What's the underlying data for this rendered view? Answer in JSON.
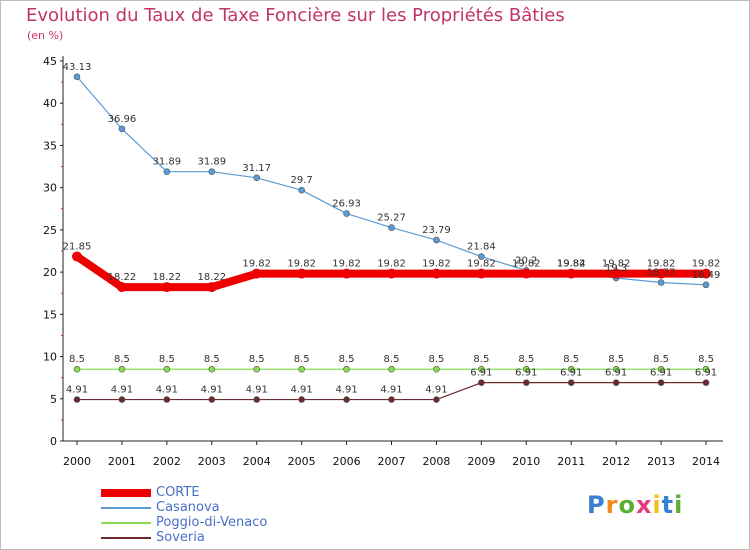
{
  "title": "Evolution du Taux de Taxe Foncière sur les Propriétés Bâties",
  "unit": "(en %)",
  "logo": "Proxiti",
  "chart_data": {
    "type": "line",
    "x": [
      2000,
      2001,
      2002,
      2003,
      2004,
      2005,
      2006,
      2007,
      2008,
      2009,
      2010,
      2011,
      2012,
      2013,
      2014
    ],
    "ylim": [
      0,
      45
    ],
    "yticks": [
      0,
      5,
      10,
      15,
      20,
      25,
      30,
      35,
      40,
      45
    ],
    "grid": false,
    "legend_position": "bottom-left",
    "series": [
      {
        "name": "CORTE",
        "color": "#ee0000",
        "width": 8,
        "values": [
          21.85,
          18.22,
          18.22,
          18.22,
          19.82,
          19.82,
          19.82,
          19.82,
          19.82,
          19.82,
          19.82,
          19.82,
          19.82,
          19.82,
          19.82
        ],
        "labels": [
          "21.85",
          "18.22",
          "18.22",
          "18.22",
          "19.82",
          "19.82",
          "19.82",
          "19.82",
          "19.82",
          "19.82",
          "19.82",
          "19.82",
          "19.82",
          "19.82",
          "19.82"
        ]
      },
      {
        "name": "Casanova",
        "color": "#5b9bd5",
        "width": 1.2,
        "values": [
          43.13,
          36.96,
          31.89,
          31.89,
          31.17,
          29.7,
          26.93,
          25.27,
          23.79,
          21.84,
          20.2,
          19.84,
          19.3,
          18.77,
          18.49
        ],
        "labels": [
          "43.13",
          "36.96",
          "31.89",
          "31.89",
          "31.17",
          "29.7",
          "26.93",
          "25.27",
          "23.79",
          "21.84",
          "20.2",
          "19.84",
          "19.3",
          "18.77",
          "18.49"
        ]
      },
      {
        "name": "Poggio-di-Venaco",
        "color": "#88dd55",
        "width": 1.2,
        "values": [
          8.5,
          8.5,
          8.5,
          8.5,
          8.5,
          8.5,
          8.5,
          8.5,
          8.5,
          8.5,
          8.5,
          8.5,
          8.5,
          8.5,
          8.5
        ],
        "labels": [
          "8.5",
          "8.5",
          "8.5",
          "8.5",
          "8.5",
          "8.5",
          "8.5",
          "8.5",
          "8.5",
          "8.5",
          "8.5",
          "8.5",
          "8.5",
          "8.5",
          "8.5"
        ]
      },
      {
        "name": "Soveria",
        "color": "#6b2a2f",
        "width": 1.2,
        "values": [
          4.91,
          4.91,
          4.91,
          4.91,
          4.91,
          4.91,
          4.91,
          4.91,
          4.91,
          6.91,
          6.91,
          6.91,
          6.91,
          6.91,
          6.91
        ],
        "labels": [
          "4.91",
          "4.91",
          "4.91",
          "4.91",
          "4.91",
          "4.91",
          "4.91",
          "4.91",
          "4.91",
          "6.91",
          "6.91",
          "6.91",
          "6.91",
          "6.91",
          "6.91"
        ]
      }
    ]
  }
}
